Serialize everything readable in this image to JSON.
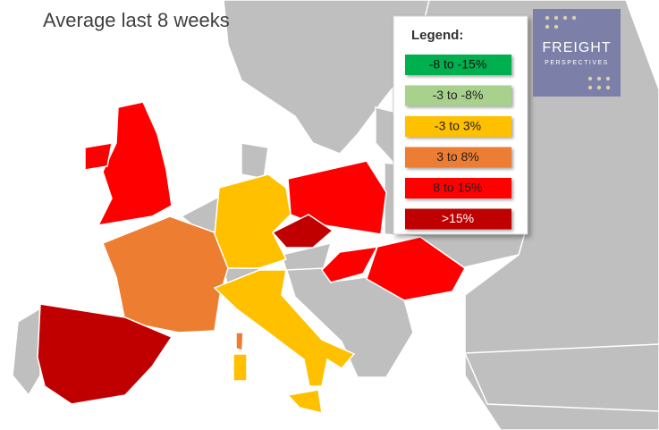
{
  "title": "Average last 8 weeks",
  "legend": {
    "title": "Legend:",
    "items": [
      {
        "label": "-8 to -15%",
        "color": "#00b050",
        "text_color": "#111111"
      },
      {
        "label": "-3 to -8%",
        "color": "#a9d18e",
        "text_color": "#222222"
      },
      {
        "label": "-3 to 3%",
        "color": "#ffc000",
        "text_color": "#222222"
      },
      {
        "label": "3 to 8%",
        "color": "#ed7d31",
        "text_color": "#222222"
      },
      {
        "label": "8 to 15%",
        "color": "#ff0000",
        "text_color": "#222222"
      },
      {
        "label": ">15%",
        "color": "#c00000",
        "text_color": "#ffffff"
      }
    ]
  },
  "logo": {
    "line1": "FREIGHT",
    "line2": "PERSPECTIVES"
  }
}
